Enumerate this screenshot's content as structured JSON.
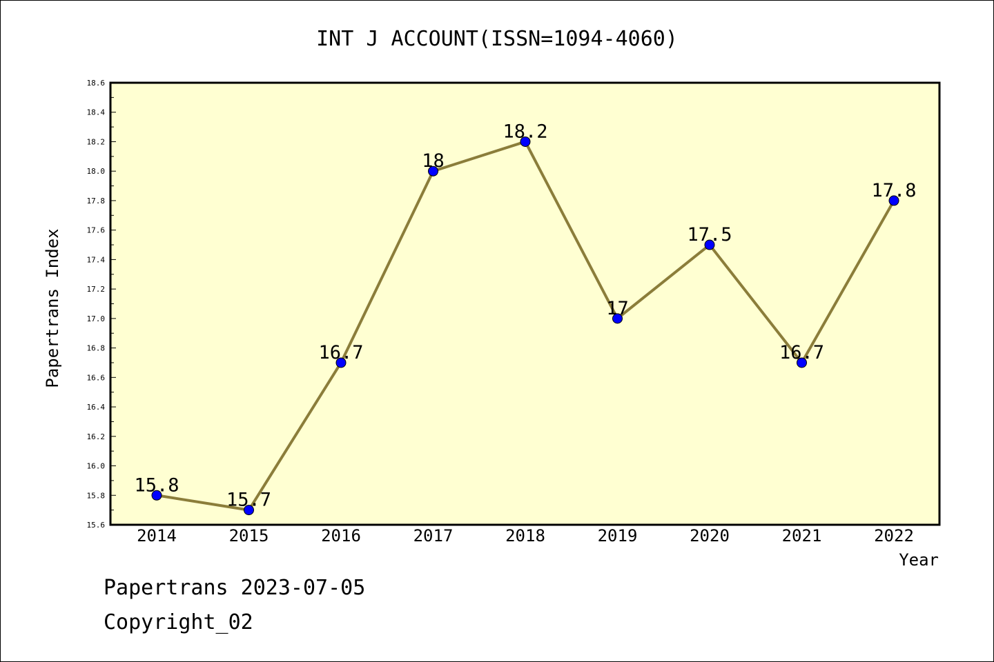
{
  "chart_data": {
    "type": "line",
    "title": "INT J ACCOUNT(ISSN=1094-4060)",
    "xlabel": "Year",
    "ylabel": "Papertrans Index",
    "categories": [
      "2014",
      "2015",
      "2016",
      "2017",
      "2018",
      "2019",
      "2020",
      "2021",
      "2022"
    ],
    "values": [
      15.8,
      15.7,
      16.7,
      18,
      18.2,
      17,
      17.5,
      16.7,
      17.8
    ],
    "data_labels": [
      "15.8",
      "15.7",
      "16.7",
      "18",
      "18.2",
      "17",
      "17.5",
      "16.7",
      "17.8"
    ],
    "ylim": [
      15.6,
      18.6
    ],
    "yticks": [
      "15.6",
      "15.8",
      "16.0",
      "16.2",
      "16.4",
      "16.6",
      "16.8",
      "17.0",
      "17.2",
      "17.4",
      "17.6",
      "17.8",
      "18.0",
      "18.2",
      "18.4",
      "18.6"
    ],
    "grid": false,
    "legend": "none",
    "colors": {
      "line": "#8b7d3a",
      "marker": "#0000ff",
      "plot_background": "#ffffd2",
      "page_background": "#ffffff"
    }
  },
  "footer": {
    "line1": "Papertrans 2023-07-05",
    "line2": "Copyright_02"
  }
}
